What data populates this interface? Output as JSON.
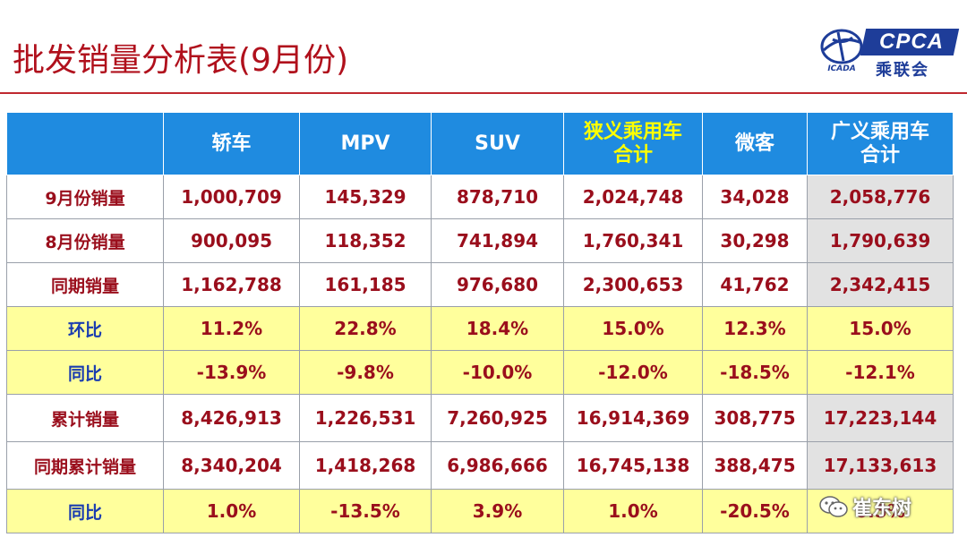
{
  "title": "批发销量分析表(9月份)",
  "logo": {
    "brand_text": "CPCA",
    "brand_cn": "乘联会",
    "globe_text": "ICADA"
  },
  "table": {
    "headers": [
      "",
      "轿车",
      "MPV",
      "SUV",
      "狭义乘用车\n合计",
      "微客",
      "广义乘用车\n合计"
    ],
    "rows": [
      {
        "label": "9月份销量",
        "values": [
          "1,000,709",
          "145,329",
          "878,710",
          "2,024,748",
          "34,028",
          "2,058,776"
        ]
      },
      {
        "label": "8月份销量",
        "values": [
          "900,095",
          "118,352",
          "741,894",
          "1,760,341",
          "30,298",
          "1,790,639"
        ]
      },
      {
        "label": "同期销量",
        "values": [
          "1,162,788",
          "161,185",
          "976,680",
          "2,300,653",
          "41,762",
          "2,342,415"
        ]
      },
      {
        "label": "环比",
        "values": [
          "11.2%",
          "22.8%",
          "18.4%",
          "15.0%",
          "12.3%",
          "15.0%"
        ]
      },
      {
        "label": "同比",
        "values": [
          "-13.9%",
          "-9.8%",
          "-10.0%",
          "-12.0%",
          "-18.5%",
          "-12.1%"
        ]
      },
      {
        "label": "累计销量",
        "values": [
          "8,426,913",
          "1,226,531",
          "7,260,925",
          "16,914,369",
          "308,775",
          "17,223,144"
        ]
      },
      {
        "label": "同期累计销量",
        "values": [
          "8,340,204",
          "1,418,268",
          "6,986,666",
          "16,745,138",
          "388,475",
          "17,133,613"
        ]
      },
      {
        "label": "同比",
        "values": [
          "1.0%",
          "-13.5%",
          "3.9%",
          "1.0%",
          "-20.5%",
          "0.5%"
        ]
      }
    ]
  },
  "watermark": {
    "text": "崔东树",
    "icon": "wechat-icon"
  },
  "colors": {
    "title": "#b0101c",
    "header_bg": "#1f8be0",
    "header_highlight": "#ffff00",
    "value_text": "#9a0e1c",
    "ratio_label": "#1a3cb0",
    "ratio_row_bg": "#ffff9c",
    "last_column_bg": "#e2e2e2",
    "logo_blue": "#1e3d99"
  }
}
